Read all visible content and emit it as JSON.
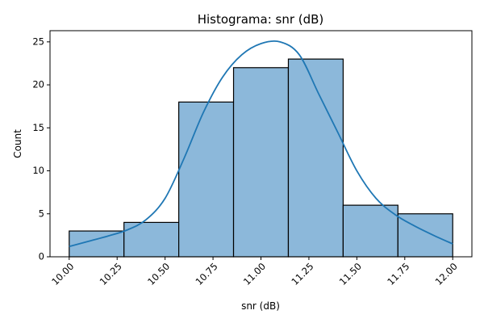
{
  "chart_data": {
    "type": "bar",
    "title": "Histograma: snr (dB)",
    "xlabel": "snr (dB)",
    "ylabel": "Count",
    "xlim": [
      9.9,
      12.1
    ],
    "ylim": [
      0,
      26.3
    ],
    "bar_color": "#8cb8da",
    "edge_color": "#000000",
    "kde_color": "#1f77b4",
    "x_ticks": [
      "10.00",
      "10.25",
      "10.50",
      "10.75",
      "11.00",
      "11.25",
      "11.50",
      "11.75",
      "12.00"
    ],
    "y_ticks": [
      "0",
      "5",
      "10",
      "15",
      "20",
      "25"
    ],
    "bins": [
      {
        "from": 10.0,
        "to": 10.2857,
        "count": 3
      },
      {
        "from": 10.2857,
        "to": 10.5714,
        "count": 4
      },
      {
        "from": 10.5714,
        "to": 10.8571,
        "count": 18
      },
      {
        "from": 10.8571,
        "to": 11.1429,
        "count": 22
      },
      {
        "from": 11.1429,
        "to": 11.4286,
        "count": 23
      },
      {
        "from": 11.4286,
        "to": 11.7143,
        "count": 6
      },
      {
        "from": 11.7143,
        "to": 12.0,
        "count": 5
      }
    ],
    "kde": {
      "x": [
        10.0,
        10.1,
        10.2,
        10.3,
        10.4,
        10.5,
        10.6,
        10.7,
        10.8,
        10.9,
        11.0,
        11.1,
        11.2,
        11.3,
        11.4,
        11.5,
        11.6,
        11.7,
        11.8,
        11.9,
        12.0
      ],
      "y": [
        1.2,
        1.8,
        2.4,
        3.1,
        4.3,
        6.8,
        11.5,
        16.8,
        20.9,
        23.5,
        24.8,
        25.0,
        23.5,
        19.0,
        14.5,
        10.0,
        6.8,
        4.9,
        3.6,
        2.5,
        1.5
      ]
    },
    "grid": false,
    "legend": "none"
  }
}
